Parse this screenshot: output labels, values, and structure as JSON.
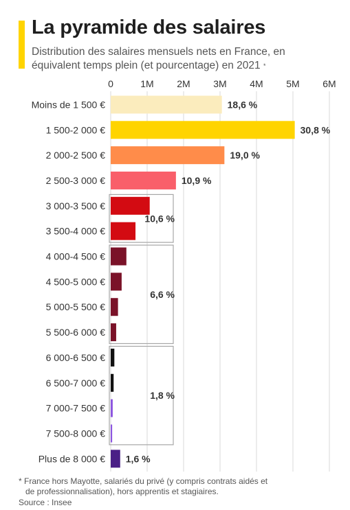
{
  "header": {
    "title": "La pyramide des salaires",
    "subtitle": "Distribution des salaires mensuels nets en France, en équivalent temps plein (et pourcentage) en 2021",
    "subtitle_mark": "*"
  },
  "chart_data": {
    "type": "bar",
    "orientation": "horizontal",
    "title": "La pyramide des salaires",
    "xlim": [
      0,
      6000000
    ],
    "x_ticks": [
      {
        "value": 0,
        "label": "0"
      },
      {
        "value": 1000000,
        "label": "1M"
      },
      {
        "value": 2000000,
        "label": "2M"
      },
      {
        "value": 3000000,
        "label": "3M"
      },
      {
        "value": 4000000,
        "label": "4M"
      },
      {
        "value": 5000000,
        "label": "5M"
      },
      {
        "value": 6000000,
        "label": "6M"
      }
    ],
    "grid": "vertical",
    "categories": [
      "Moins de 1 500 €",
      "1 500-2 000 €",
      "2 000-2 500 €",
      "2 500-3 000 €",
      "3 000-3 500 €",
      "3 500-4 000 €",
      "4 000-4 500 €",
      "4 500-5 000 €",
      "5 000-5 500 €",
      "5 500-6 000 €",
      "6 000-6 500 €",
      "6 500-7 000 €",
      "7 000-7 500 €",
      "7 500-8 000 €",
      "Plus de 8 000 €"
    ],
    "values": [
      3050000,
      5050000,
      3120000,
      1790000,
      1070000,
      680000,
      430000,
      300000,
      200000,
      150000,
      100000,
      80000,
      55000,
      40000,
      260000
    ],
    "colors": [
      "#fbecbd",
      "#ffd400",
      "#ff8c4a",
      "#f95f6a",
      "#d30b12",
      "#d30b12",
      "#7a1228",
      "#7a1228",
      "#7a1228",
      "#7a1228",
      "#111111",
      "#111111",
      "#8c55e0",
      "#8c55e0",
      "#4a1f86"
    ],
    "bar_labels": [
      {
        "index": 0,
        "text": "18,6 %"
      },
      {
        "index": 1,
        "text": "30,8 %"
      },
      {
        "index": 2,
        "text": "19,0 %"
      },
      {
        "index": 3,
        "text": "10,9 %"
      },
      {
        "index": 14,
        "text": "1,6 %"
      }
    ],
    "groups": [
      {
        "from": 4,
        "to": 5,
        "label": "10,6 %"
      },
      {
        "from": 6,
        "to": 9,
        "label": "6,6 %"
      },
      {
        "from": 10,
        "to": 13,
        "label": "1,8 %"
      }
    ]
  },
  "footnote": {
    "line1": "* France hors Mayotte, salariés du privé (y compris contrats aidés et",
    "line2": "de professionnalisation), hors apprentis et stagiaires.",
    "source": "Source : Insee"
  }
}
